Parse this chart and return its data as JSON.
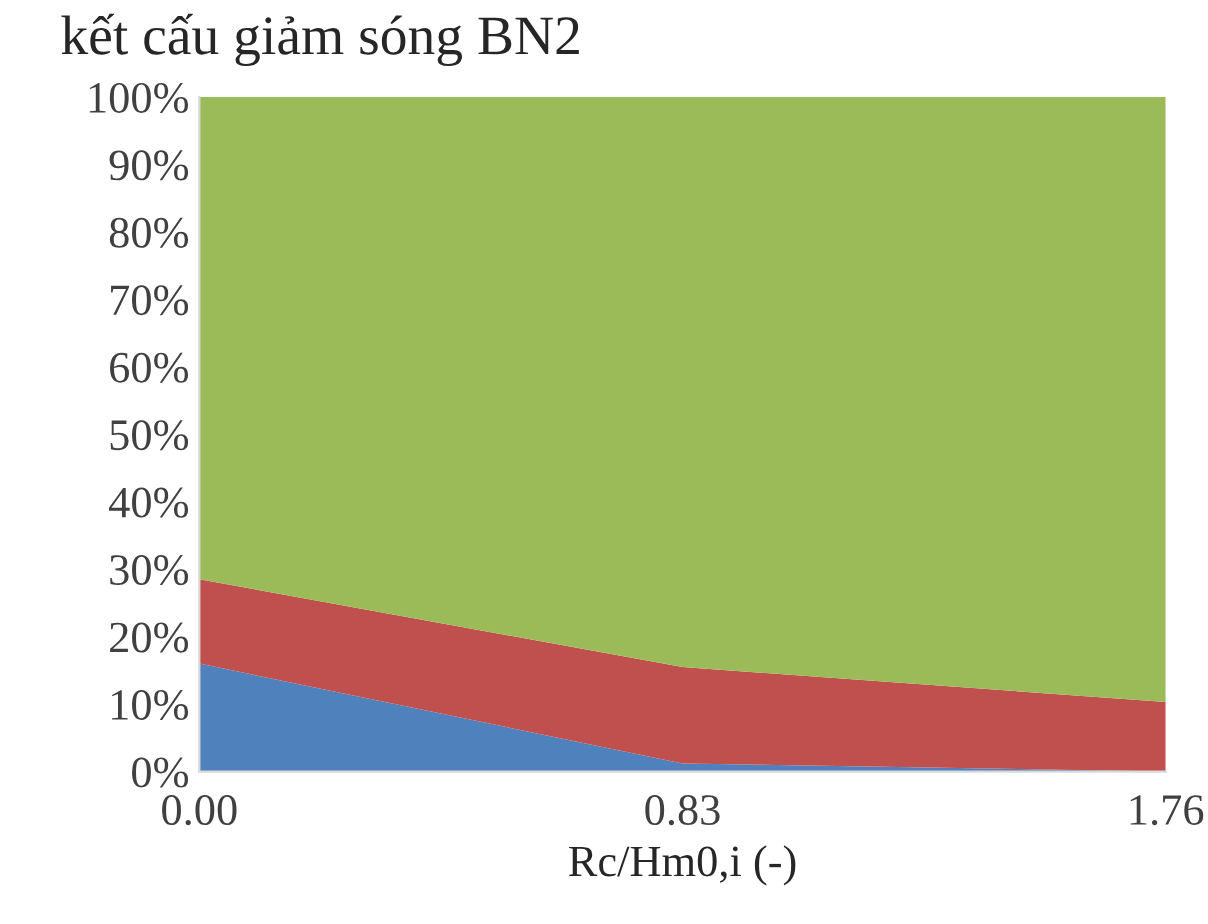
{
  "chart_data": {
    "type": "area",
    "stacked": true,
    "title": "kết cấu giảm sóng BN2",
    "xlabel": "Rc/Hm0,i (-)",
    "categories": [
      "0.00",
      "0.83",
      "1.76"
    ],
    "series": [
      {
        "color": "#4f81bd",
        "values": [
          16,
          1.2,
          0
        ]
      },
      {
        "color": "#c0504d",
        "values": [
          12.5,
          14.3,
          10.3
        ]
      },
      {
        "color": "#9bbb59",
        "values": [
          71.5,
          84.5,
          89.7
        ]
      }
    ],
    "ylim": [
      0,
      100
    ],
    "yticks": [
      {
        "value": 0,
        "label": "0%"
      },
      {
        "value": 10,
        "label": "10%"
      },
      {
        "value": 20,
        "label": "20%"
      },
      {
        "value": 30,
        "label": "30%"
      },
      {
        "value": 40,
        "label": "40%"
      },
      {
        "value": 50,
        "label": "50%"
      },
      {
        "value": 60,
        "label": "60%"
      },
      {
        "value": 70,
        "label": "70%"
      },
      {
        "value": 80,
        "label": "80%"
      },
      {
        "value": 90,
        "label": "90%"
      },
      {
        "value": 100,
        "label": "100%"
      }
    ],
    "grid": false,
    "legend": false
  }
}
